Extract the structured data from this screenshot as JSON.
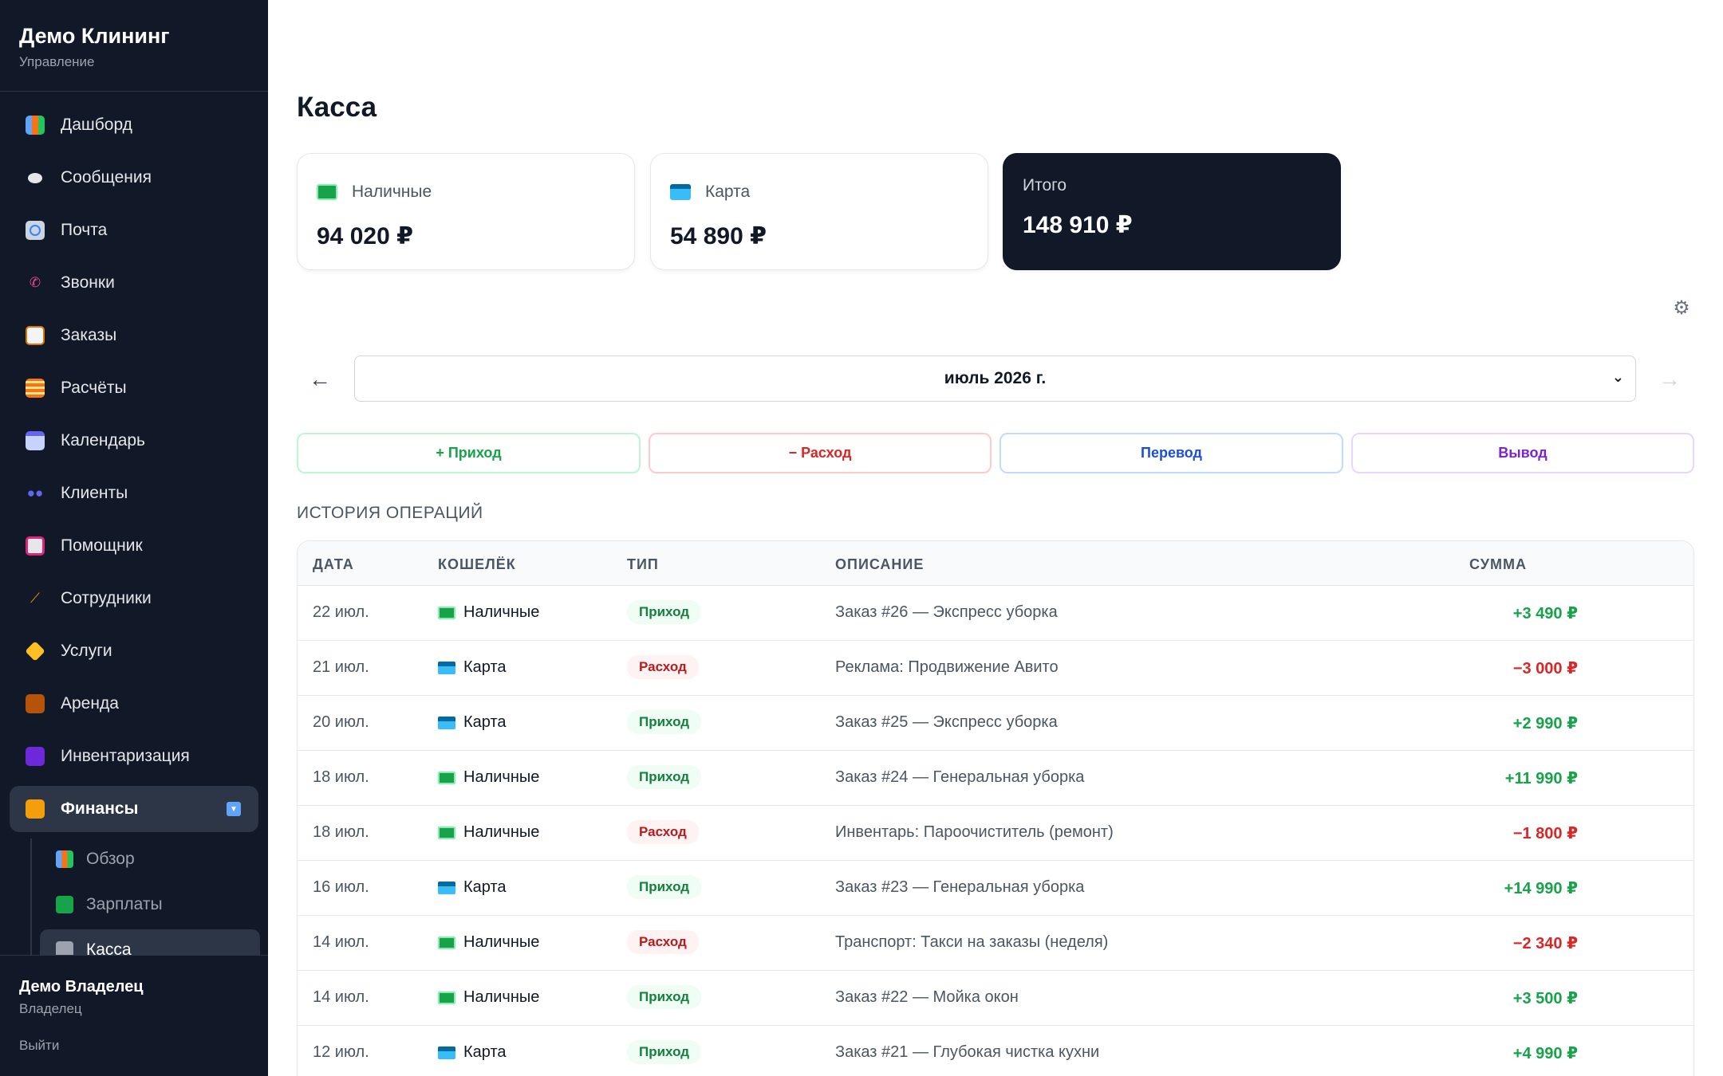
{
  "sidebar": {
    "brand_title": "Демо Клининг",
    "brand_sub": "Управление",
    "items": [
      {
        "label": "Дашборд",
        "icon": "chart-icon"
      },
      {
        "label": "Сообщения",
        "icon": "speech-bubble-icon"
      },
      {
        "label": "Почта",
        "icon": "mail-icon"
      },
      {
        "label": "Звонки",
        "icon": "phone-icon"
      },
      {
        "label": "Заказы",
        "icon": "clipboard-icon"
      },
      {
        "label": "Расчёты",
        "icon": "abacus-icon"
      },
      {
        "label": "Календарь",
        "icon": "calendar-icon"
      },
      {
        "label": "Клиенты",
        "icon": "people-icon"
      },
      {
        "label": "Помощник",
        "icon": "robot-icon"
      },
      {
        "label": "Сотрудники",
        "icon": "broom-icon"
      },
      {
        "label": "Услуги",
        "icon": "tag-icon"
      },
      {
        "label": "Аренда",
        "icon": "package-icon"
      },
      {
        "label": "Инвентаризация",
        "icon": "inventory-icon"
      },
      {
        "label": "Финансы",
        "icon": "money-bag-icon"
      }
    ],
    "sub_items": [
      {
        "label": "Обзор",
        "icon": "chart-icon"
      },
      {
        "label": "Зарплаты",
        "icon": "banknote-icon"
      },
      {
        "label": "Касса",
        "icon": "bank-icon"
      }
    ],
    "user_name": "Демо Владелец",
    "user_role": "Владелец",
    "logout": "Выйти"
  },
  "main": {
    "title": "Касса",
    "cards": {
      "cash_label": "Наличные",
      "cash_value": "94 020 ₽",
      "card_label": "Карта",
      "card_value": "54 890 ₽",
      "total_label": "Итого",
      "total_value": "148 910 ₽"
    },
    "month": "июль 2026 г.",
    "prev_arrow": "←",
    "next_arrow": "→",
    "actions": {
      "income": "+ Приход",
      "expense": "− Расход",
      "transfer": "Перевод",
      "withdraw": "Вывод"
    },
    "history_title": "ИСТОРИЯ ОПЕРАЦИЙ",
    "columns": {
      "date": "ДАТА",
      "wallet": "КОШЕЛЁК",
      "type": "ТИП",
      "desc": "ОПИСАНИЕ",
      "sum": "СУММА"
    },
    "rows": [
      {
        "date": "22 июл.",
        "wallet": "Наличные",
        "type": "Приход",
        "desc": "Заказ #26 — Экспресс уборка",
        "sum": "+3 490 ₽"
      },
      {
        "date": "21 июл.",
        "wallet": "Карта",
        "type": "Расход",
        "desc": "Реклама: Продвижение Авито",
        "sum": "−3 000 ₽"
      },
      {
        "date": "20 июл.",
        "wallet": "Карта",
        "type": "Приход",
        "desc": "Заказ #25 — Экспресс уборка",
        "sum": "+2 990 ₽"
      },
      {
        "date": "18 июл.",
        "wallet": "Наличные",
        "type": "Приход",
        "desc": "Заказ #24 — Генеральная уборка",
        "sum": "+11 990 ₽"
      },
      {
        "date": "18 июл.",
        "wallet": "Наличные",
        "type": "Расход",
        "desc": "Инвентарь: Пароочиститель (ремонт)",
        "sum": "−1 800 ₽"
      },
      {
        "date": "16 июл.",
        "wallet": "Карта",
        "type": "Приход",
        "desc": "Заказ #23 — Генеральная уборка",
        "sum": "+14 990 ₽"
      },
      {
        "date": "14 июл.",
        "wallet": "Наличные",
        "type": "Расход",
        "desc": "Транспорт: Такси на заказы (неделя)",
        "sum": "−2 340 ₽"
      },
      {
        "date": "14 июл.",
        "wallet": "Наличные",
        "type": "Приход",
        "desc": "Заказ #22 — Мойка окон",
        "sum": "+3 500 ₽"
      },
      {
        "date": "12 июл.",
        "wallet": "Карта",
        "type": "Приход",
        "desc": "Заказ #21 — Глубокая чистка кухни",
        "sum": "+4 990 ₽"
      }
    ]
  },
  "colors": {
    "sidebar_bg": "#111827",
    "income_green": "#16a34a",
    "expense_red": "#dc2626",
    "transfer_blue": "#1d4ed8",
    "withdraw_purple": "#7e22ce"
  }
}
